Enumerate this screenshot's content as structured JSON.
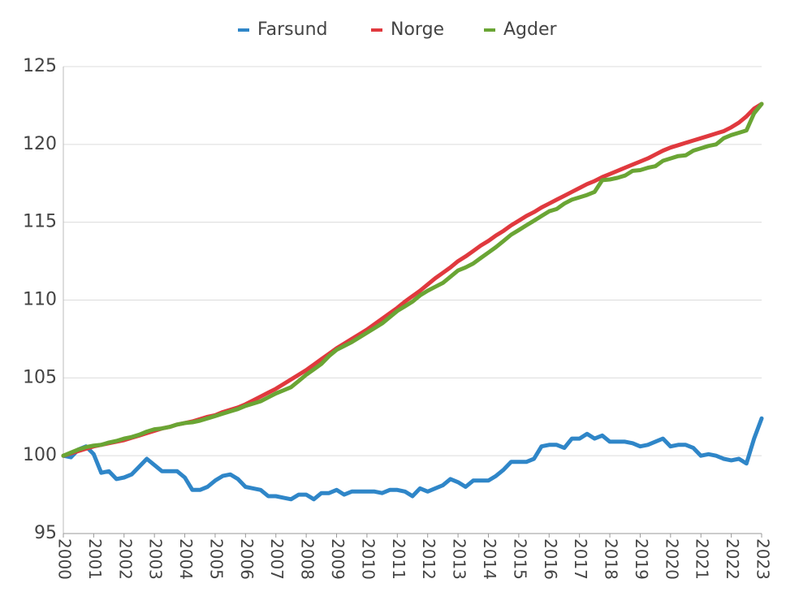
{
  "chart_data": {
    "type": "line",
    "x": [
      2000,
      2000.25,
      2000.5,
      2000.75,
      2001,
      2001.25,
      2001.5,
      2001.75,
      2002,
      2002.25,
      2002.5,
      2002.75,
      2003,
      2003.25,
      2003.5,
      2003.75,
      2004,
      2004.25,
      2004.5,
      2004.75,
      2005,
      2005.25,
      2005.5,
      2005.75,
      2006,
      2006.25,
      2006.5,
      2006.75,
      2007,
      2007.25,
      2007.5,
      2007.75,
      2008,
      2008.25,
      2008.5,
      2008.75,
      2009,
      2009.25,
      2009.5,
      2009.75,
      2010,
      2010.25,
      2010.5,
      2010.75,
      2011,
      2011.25,
      2011.5,
      2011.75,
      2012,
      2012.25,
      2012.5,
      2012.75,
      2013,
      2013.25,
      2013.5,
      2013.75,
      2014,
      2014.25,
      2014.5,
      2014.75,
      2015,
      2015.25,
      2015.5,
      2015.75,
      2016,
      2016.25,
      2016.5,
      2016.75,
      2017,
      2017.25,
      2017.5,
      2017.75,
      2018,
      2018.25,
      2018.5,
      2018.75,
      2019,
      2019.25,
      2019.5,
      2019.75,
      2020,
      2020.25,
      2020.5,
      2020.75,
      2021,
      2021.25,
      2021.5,
      2021.75,
      2022,
      2022.25,
      2022.5,
      2022.75,
      2023
    ],
    "series": [
      {
        "name": "Farsund",
        "color": "#2f86c8",
        "values": [
          100,
          99.9,
          100.4,
          100.6,
          100.1,
          98.9,
          99.0,
          98.5,
          98.6,
          98.8,
          99.3,
          99.8,
          99.4,
          99.0,
          99.0,
          99.0,
          98.6,
          97.8,
          97.8,
          98.0,
          98.4,
          98.7,
          98.8,
          98.5,
          98.0,
          97.9,
          97.8,
          97.4,
          97.4,
          97.3,
          97.2,
          97.5,
          97.5,
          97.2,
          97.6,
          97.6,
          97.8,
          97.5,
          97.7,
          97.7,
          97.7,
          97.7,
          97.6,
          97.8,
          97.8,
          97.7,
          97.4,
          97.9,
          97.7,
          97.9,
          98.1,
          98.5,
          98.3,
          98.0,
          98.4,
          98.4,
          98.4,
          98.7,
          99.1,
          99.6,
          99.6,
          99.6,
          99.8,
          100.6,
          100.7,
          100.7,
          100.5,
          101.1,
          101.1,
          101.4,
          101.1,
          101.3,
          100.9,
          100.9,
          100.9,
          100.8,
          100.6,
          100.7,
          100.9,
          101.1,
          100.6,
          100.7,
          100.7,
          100.5,
          100.0,
          100.1,
          100.0,
          99.8,
          99.7,
          99.8,
          99.5,
          101.1,
          102.4
        ]
      },
      {
        "name": "Norge",
        "color": "#e0393e",
        "values": [
          100.0,
          100.15,
          100.3,
          100.45,
          100.6,
          100.7,
          100.8,
          100.9,
          101.0,
          101.15,
          101.3,
          101.45,
          101.6,
          101.75,
          101.85,
          102.0,
          102.1,
          102.2,
          102.35,
          102.5,
          102.6,
          102.8,
          102.95,
          103.1,
          103.3,
          103.55,
          103.8,
          104.05,
          104.3,
          104.6,
          104.9,
          105.2,
          105.5,
          105.85,
          106.2,
          106.55,
          106.9,
          107.2,
          107.5,
          107.8,
          108.1,
          108.45,
          108.8,
          109.15,
          109.5,
          109.9,
          110.25,
          110.6,
          111.0,
          111.4,
          111.75,
          112.1,
          112.5,
          112.8,
          113.15,
          113.5,
          113.8,
          114.15,
          114.45,
          114.8,
          115.1,
          115.4,
          115.65,
          115.95,
          116.2,
          116.45,
          116.7,
          116.95,
          117.2,
          117.45,
          117.65,
          117.9,
          118.1,
          118.3,
          118.5,
          118.7,
          118.9,
          119.1,
          119.35,
          119.6,
          119.8,
          119.95,
          120.1,
          120.25,
          120.4,
          120.55,
          120.7,
          120.85,
          121.1,
          121.4,
          121.8,
          122.3,
          122.6
        ]
      },
      {
        "name": "Agder",
        "color": "#6aa534",
        "values": [
          100.0,
          100.2,
          100.4,
          100.55,
          100.65,
          100.7,
          100.85,
          100.95,
          101.1,
          101.2,
          101.35,
          101.55,
          101.7,
          101.75,
          101.85,
          102.0,
          102.1,
          102.15,
          102.25,
          102.4,
          102.55,
          102.7,
          102.85,
          103.0,
          103.2,
          103.35,
          103.5,
          103.75,
          104.0,
          104.2,
          104.4,
          104.8,
          105.2,
          105.55,
          105.9,
          106.4,
          106.8,
          107.05,
          107.3,
          107.6,
          107.9,
          108.2,
          108.5,
          108.9,
          109.3,
          109.6,
          109.9,
          110.3,
          110.6,
          110.85,
          111.1,
          111.5,
          111.9,
          112.1,
          112.35,
          112.7,
          113.05,
          113.4,
          113.8,
          114.2,
          114.5,
          114.8,
          115.1,
          115.4,
          115.7,
          115.85,
          116.2,
          116.45,
          116.6,
          116.75,
          116.95,
          117.7,
          117.75,
          117.85,
          118.0,
          118.3,
          118.35,
          118.5,
          118.6,
          118.95,
          119.1,
          119.25,
          119.3,
          119.6,
          119.75,
          119.9,
          120.0,
          120.4,
          120.6,
          120.75,
          120.9,
          122.0,
          122.6
        ]
      }
    ],
    "xlim": [
      2000,
      2023
    ],
    "xticks": [
      2000,
      2001,
      2002,
      2003,
      2004,
      2005,
      2006,
      2007,
      2008,
      2009,
      2010,
      2011,
      2012,
      2013,
      2014,
      2015,
      2016,
      2017,
      2018,
      2019,
      2020,
      2021,
      2022,
      2023
    ],
    "ylim": [
      95,
      125
    ],
    "yticks": [
      95,
      100,
      105,
      110,
      115,
      120,
      125
    ],
    "grid": true,
    "legend": "top"
  }
}
